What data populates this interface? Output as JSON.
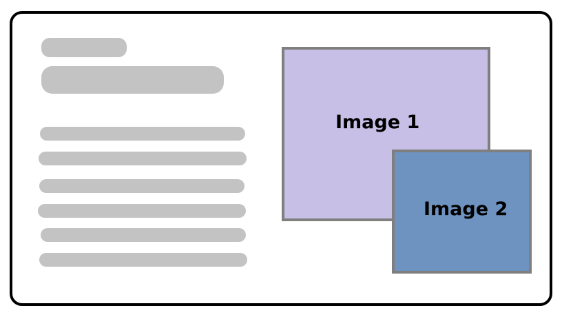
{
  "diagram": {
    "images": [
      {
        "label": "Image 1",
        "fill": "#c7bfe6"
      },
      {
        "label": "Image 2",
        "fill": "#6f93c1"
      }
    ],
    "border_color": "#7f7f7f",
    "placeholder_color": "#c3c3c3",
    "frame_color": "#000000"
  }
}
